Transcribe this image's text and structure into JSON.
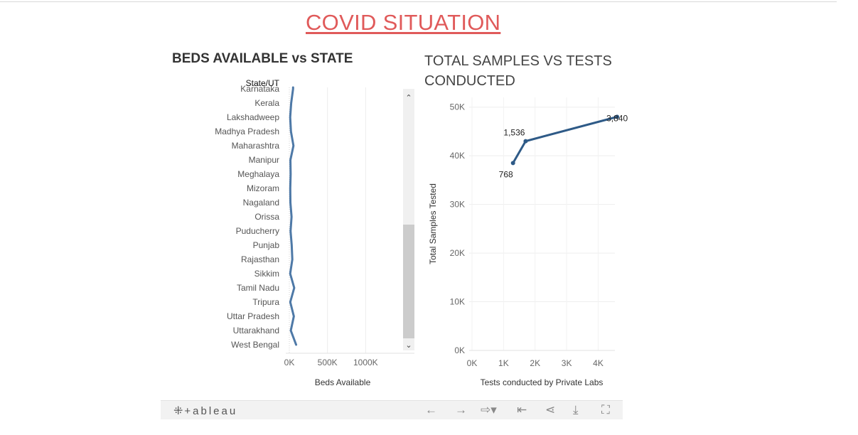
{
  "page": {
    "title": "COVID SITUATION"
  },
  "left_chart_title": "BEDS AVAILABLE vs STATE",
  "right_chart_title": "TOTAL SAMPLES VS TESTS CONDUCTED",
  "chart_data": [
    {
      "type": "line",
      "orientation": "horizontal",
      "title": "BEDS AVAILABLE vs STATE",
      "row_header": "State/UT",
      "xlabel": "Beds Available",
      "categories": [
        "Karnataka",
        "Kerala",
        "Lakshadweep",
        "Madhya Pradesh",
        "Maharashtra",
        "Manipur",
        "Meghalaya",
        "Mizoram",
        "Nagaland",
        "Orissa",
        "Puducherry",
        "Punjab",
        "Rajasthan",
        "Sikkim",
        "Tamil Nadu",
        "Tripura",
        "Uttar Pradesh",
        "Uttarakhand",
        "West Bengal"
      ],
      "values": [
        40000,
        15000,
        2000,
        12000,
        45000,
        5000,
        8000,
        3000,
        5000,
        20000,
        7000,
        22000,
        30000,
        2000,
        55000,
        3000,
        50000,
        10000,
        80000
      ],
      "xlim": [
        0,
        1500000
      ],
      "xticks": [
        "0K",
        "500K",
        "1000K"
      ],
      "color": "#4e79a7",
      "scrollbar": true
    },
    {
      "type": "line",
      "title": "TOTAL SAMPLES VS TESTS CONDUCTED",
      "xlabel": "Tests conducted by Private Labs",
      "ylabel": "Total Samples Tested",
      "points": [
        {
          "x": 1300,
          "y": 38500,
          "label": "768"
        },
        {
          "x": 1700,
          "y": 43000,
          "label": "1,536"
        },
        {
          "x": 4600,
          "y": 48000,
          "label": "3,840"
        }
      ],
      "xlim": [
        0,
        4800
      ],
      "ylim": [
        0,
        52000
      ],
      "xticks": [
        "0K",
        "1K",
        "2K",
        "3K",
        "4K"
      ],
      "yticks": [
        "0K",
        "10K",
        "20K",
        "30K",
        "40K",
        "50K"
      ],
      "color": "#2e5a87",
      "grid": true
    }
  ],
  "footer": {
    "brand": "+ableau",
    "icons": [
      "undo-icon",
      "redo-icon",
      "revert-icon",
      "reset-icon",
      "share-icon",
      "download-icon",
      "fullscreen-icon"
    ]
  }
}
